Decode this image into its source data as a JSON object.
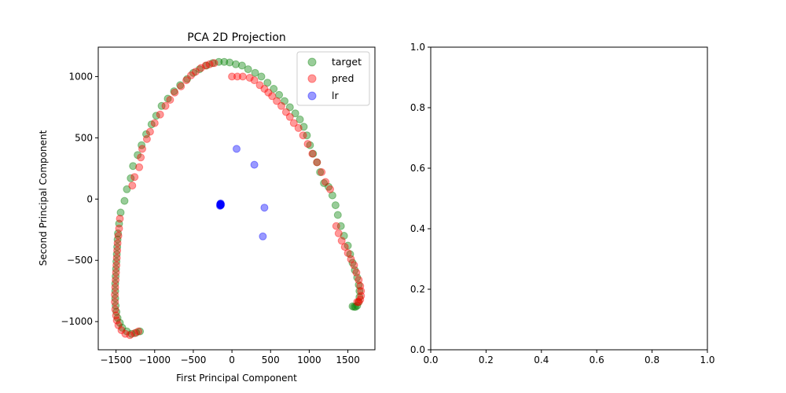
{
  "chart_data": [
    {
      "type": "scatter",
      "title": "PCA 2D Projection",
      "xlabel": "First Principal Component",
      "ylabel": "Second Principal Component",
      "xlim": [
        -1730,
        1850
      ],
      "ylim": [
        -1230,
        1240
      ],
      "xticks": [
        -1500,
        -1000,
        -500,
        0,
        500,
        1000,
        1500
      ],
      "xtick_labels": [
        "−1500",
        "−1000",
        "−500",
        "0",
        "500",
        "1000",
        "1500"
      ],
      "yticks": [
        -1000,
        -500,
        0,
        500,
        1000
      ],
      "ytick_labels": [
        "−1000",
        "−500",
        "0",
        "500",
        "1000"
      ],
      "grid": false,
      "legend_position": "top-right",
      "series": [
        {
          "name": "target",
          "color": "#008000",
          "alpha": 0.4,
          "points": [
            [
              -1190,
              -1080
            ],
            [
              -1240,
              -1090
            ],
            [
              -1300,
              -1100
            ],
            [
              -1360,
              -1080
            ],
            [
              -1420,
              -1050
            ],
            [
              -1450,
              -1010
            ],
            [
              -1480,
              -970
            ],
            [
              -1495,
              -920
            ],
            [
              -1505,
              -870
            ],
            [
              -1510,
              -810
            ],
            [
              -1510,
              -750
            ],
            [
              -1510,
              -690
            ],
            [
              -1505,
              -630
            ],
            [
              -1500,
              -570
            ],
            [
              -1495,
              -510
            ],
            [
              -1490,
              -450
            ],
            [
              -1485,
              -390
            ],
            [
              -1480,
              -330
            ],
            [
              -1475,
              -280
            ],
            [
              -1460,
              -200
            ],
            [
              -1440,
              -110
            ],
            [
              -1390,
              -15
            ],
            [
              -1360,
              80
            ],
            [
              -1310,
              170
            ],
            [
              -1280,
              270
            ],
            [
              -1220,
              360
            ],
            [
              -1170,
              440
            ],
            [
              -1110,
              530
            ],
            [
              -1040,
              610
            ],
            [
              -980,
              680
            ],
            [
              -910,
              760
            ],
            [
              -830,
              820
            ],
            [
              -750,
              880
            ],
            [
              -670,
              930
            ],
            [
              -580,
              980
            ],
            [
              -500,
              1030
            ],
            [
              -420,
              1060
            ],
            [
              -330,
              1090
            ],
            [
              -250,
              1110
            ],
            [
              -170,
              1120
            ],
            [
              -100,
              1120
            ],
            [
              -30,
              1115
            ],
            [
              50,
              1100
            ],
            [
              130,
              1090
            ],
            [
              210,
              1060
            ],
            [
              300,
              1030
            ],
            [
              380,
              1000
            ],
            [
              460,
              950
            ],
            [
              540,
              900
            ],
            [
              610,
              850
            ],
            [
              680,
              800
            ],
            [
              750,
              750
            ],
            [
              820,
              700
            ],
            [
              880,
              650
            ],
            [
              930,
              590
            ],
            [
              970,
              520
            ],
            [
              1010,
              440
            ],
            [
              1050,
              370
            ],
            [
              1100,
              300
            ],
            [
              1140,
              220
            ],
            [
              1190,
              130
            ],
            [
              1250,
              100
            ],
            [
              1300,
              30
            ],
            [
              1340,
              -50
            ],
            [
              1370,
              -130
            ],
            [
              1410,
              -220
            ],
            [
              1450,
              -300
            ],
            [
              1500,
              -380
            ],
            [
              1530,
              -450
            ],
            [
              1560,
              -520
            ],
            [
              1590,
              -580
            ],
            [
              1620,
              -640
            ],
            [
              1640,
              -700
            ],
            [
              1650,
              -750
            ],
            [
              1650,
              -800
            ],
            [
              1640,
              -840
            ],
            [
              1620,
              -870
            ],
            [
              1600,
              -880
            ],
            [
              1580,
              -880
            ],
            [
              1560,
              -875
            ]
          ]
        },
        {
          "name": "pred",
          "color": "#ff0000",
          "alpha": 0.4,
          "points": [
            [
              -1210,
              -1080
            ],
            [
              -1260,
              -1095
            ],
            [
              -1320,
              -1110
            ],
            [
              -1380,
              -1100
            ],
            [
              -1430,
              -1070
            ],
            [
              -1470,
              -1030
            ],
            [
              -1490,
              -990
            ],
            [
              -1500,
              -950
            ],
            [
              -1510,
              -900
            ],
            [
              -1515,
              -840
            ],
            [
              -1515,
              -780
            ],
            [
              -1510,
              -720
            ],
            [
              -1505,
              -660
            ],
            [
              -1500,
              -600
            ],
            [
              -1495,
              -540
            ],
            [
              -1490,
              -480
            ],
            [
              -1485,
              -420
            ],
            [
              -1480,
              -360
            ],
            [
              -1470,
              -300
            ],
            [
              -1460,
              -240
            ],
            [
              -1450,
              -160
            ],
            [
              -1290,
              110
            ],
            [
              -1260,
              180
            ],
            [
              -1200,
              260
            ],
            [
              -1180,
              340
            ],
            [
              -1160,
              410
            ],
            [
              -1100,
              490
            ],
            [
              -1060,
              550
            ],
            [
              -1000,
              620
            ],
            [
              -930,
              690
            ],
            [
              -860,
              760
            ],
            [
              -800,
              810
            ],
            [
              -740,
              870
            ],
            [
              -660,
              920
            ],
            [
              -590,
              970
            ],
            [
              -530,
              1010
            ],
            [
              -470,
              1040
            ],
            [
              -400,
              1070
            ],
            [
              -340,
              1090
            ],
            [
              -290,
              1100
            ],
            [
              -230,
              1110
            ],
            [
              0,
              1000
            ],
            [
              70,
              1000
            ],
            [
              140,
              1000
            ],
            [
              230,
              990
            ],
            [
              290,
              970
            ],
            [
              360,
              930
            ],
            [
              420,
              900
            ],
            [
              470,
              870
            ],
            [
              520,
              840
            ],
            [
              580,
              800
            ],
            [
              640,
              760
            ],
            [
              700,
              710
            ],
            [
              750,
              670
            ],
            [
              800,
              620
            ],
            [
              860,
              580
            ],
            [
              920,
              520
            ],
            [
              980,
              450
            ],
            [
              1040,
              370
            ],
            [
              1100,
              300
            ],
            [
              1160,
              220
            ],
            [
              1210,
              140
            ],
            [
              1270,
              80
            ],
            [
              1350,
              -220
            ],
            [
              1380,
              -280
            ],
            [
              1420,
              -340
            ],
            [
              1460,
              -390
            ],
            [
              1500,
              -440
            ],
            [
              1540,
              -490
            ],
            [
              1580,
              -540
            ],
            [
              1610,
              -600
            ],
            [
              1640,
              -660
            ],
            [
              1660,
              -710
            ],
            [
              1670,
              -750
            ],
            [
              1670,
              -790
            ],
            [
              1660,
              -820
            ],
            [
              1640,
              -840
            ],
            [
              1620,
              -840
            ]
          ]
        },
        {
          "name": "lr",
          "color": "#0000ff",
          "alpha": 0.4,
          "points": [
            [
              60,
              410
            ],
            [
              290,
              280
            ],
            [
              -150,
              -40
            ],
            [
              -150,
              -50
            ],
            [
              -150,
              -45
            ],
            [
              -145,
              -35
            ],
            [
              -155,
              -55
            ],
            [
              -140,
              -45
            ],
            [
              -150,
              -40
            ],
            [
              -148,
              -48
            ],
            [
              -152,
              -42
            ],
            [
              -146,
              -52
            ],
            [
              420,
              -70
            ],
            [
              400,
              -305
            ]
          ]
        }
      ]
    },
    {
      "type": "scatter",
      "title": "",
      "xlabel": "",
      "ylabel": "",
      "xlim": [
        0,
        1
      ],
      "ylim": [
        0,
        1
      ],
      "xticks": [
        0,
        0.2,
        0.4,
        0.6,
        0.8,
        1.0
      ],
      "xtick_labels": [
        "0.0",
        "0.2",
        "0.4",
        "0.6",
        "0.8",
        "1.0"
      ],
      "yticks": [
        0,
        0.2,
        0.4,
        0.6,
        0.8,
        1.0
      ],
      "ytick_labels": [
        "0.0",
        "0.2",
        "0.4",
        "0.6",
        "0.8",
        "1.0"
      ],
      "grid": false,
      "series": []
    }
  ]
}
